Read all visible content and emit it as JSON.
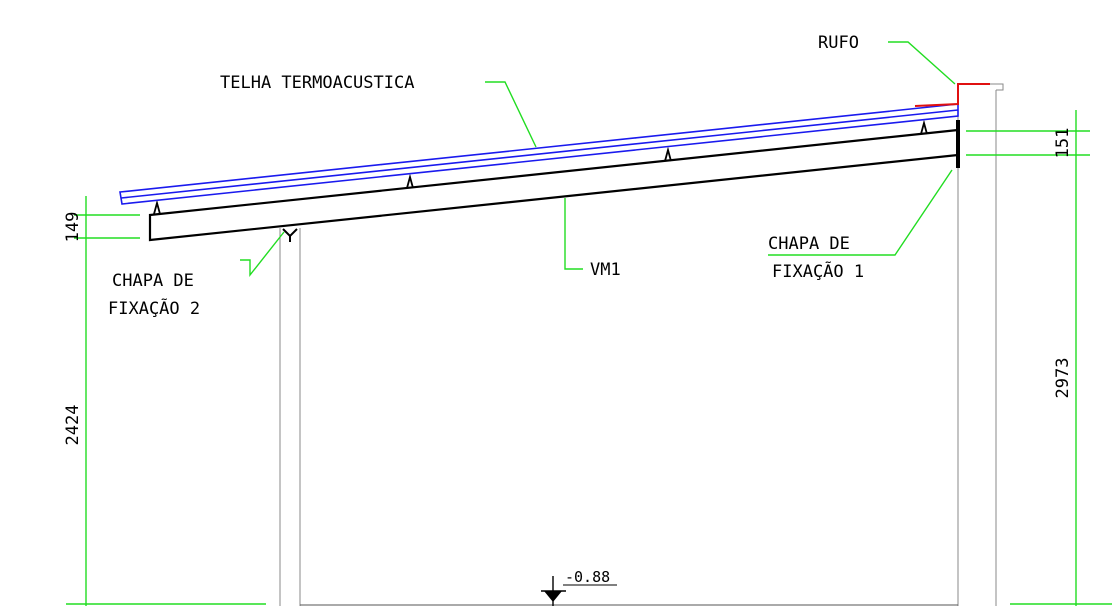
{
  "labels": {
    "rufo": "RUFO",
    "telha": "TELHA TERMOACUSTICA",
    "vm1": "VM1",
    "chapa1_line1": "CHAPA DE",
    "chapa1_line2": "FIXAÇÃO 1",
    "chapa2_line1": "CHAPA DE",
    "chapa2_line2": "FIXAÇÃO 2"
  },
  "dimensions": {
    "beam_depth_left": "149",
    "beam_depth_right": "151",
    "height_left": "2424",
    "height_right": "2973"
  },
  "level": {
    "value": "-0.88"
  },
  "colors": {
    "dimension_lines": "#22dd22",
    "roof_tile": "#1a1aee",
    "flashing": "#e01010",
    "structure": "#000000"
  }
}
